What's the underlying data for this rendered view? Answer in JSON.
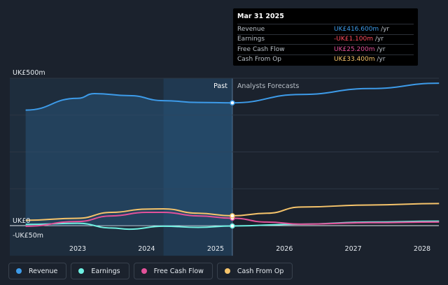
{
  "chart_data": {
    "type": "line",
    "currency_prefix": "UK£",
    "y_axis": {
      "top_label": "UK£500m",
      "zero_label": "UK£0",
      "bottom_label": "-UK£50m",
      "ylim": [
        -50,
        500
      ]
    },
    "x_axis": {
      "ticks": [
        "2023",
        "2024",
        "2025",
        "2026",
        "2027",
        "2028"
      ]
    },
    "regions": {
      "past_label": "Past",
      "forecast_label": "Analysts Forecasts",
      "divider_date": "2025-03-31"
    },
    "series": [
      {
        "name": "Revenue",
        "color": "#3d9be9",
        "points": [
          [
            "2022-03-31",
            392
          ],
          [
            "2022-12-31",
            432
          ],
          [
            "2023-03-31",
            448
          ],
          [
            "2023-09-30",
            441
          ],
          [
            "2024-03-31",
            424
          ],
          [
            "2024-09-30",
            418
          ],
          [
            "2025-03-31",
            416.6
          ],
          [
            "2026-03-31",
            445
          ],
          [
            "2027-03-31",
            465
          ],
          [
            "2028-03-31",
            483
          ],
          [
            "2028-03-31",
            487
          ]
        ]
      },
      {
        "name": "Earnings",
        "color": "#6ff0e2",
        "points": [
          [
            "2022-03-31",
            4
          ],
          [
            "2022-12-31",
            8
          ],
          [
            "2023-06-30",
            -8
          ],
          [
            "2023-09-30",
            -12
          ],
          [
            "2024-03-31",
            -2
          ],
          [
            "2024-09-30",
            -6
          ],
          [
            "2025-03-31",
            -1.1
          ],
          [
            "2026-03-31",
            5
          ],
          [
            "2027-03-31",
            12
          ],
          [
            "2028-03-31",
            15
          ]
        ]
      },
      {
        "name": "Free Cash Flow",
        "color": "#e2529a",
        "points": [
          [
            "2022-03-31",
            -2
          ],
          [
            "2022-12-31",
            14
          ],
          [
            "2023-06-30",
            33
          ],
          [
            "2023-12-31",
            45
          ],
          [
            "2024-03-31",
            45
          ],
          [
            "2024-09-30",
            33
          ],
          [
            "2025-03-31",
            25.2
          ],
          [
            "2025-09-30",
            12
          ],
          [
            "2026-03-31",
            5
          ],
          [
            "2027-03-31",
            10
          ],
          [
            "2028-03-31",
            12
          ]
        ]
      },
      {
        "name": "Cash From Op",
        "color": "#f6c46b",
        "points": [
          [
            "2022-03-31",
            18
          ],
          [
            "2022-12-31",
            25
          ],
          [
            "2023-06-30",
            45
          ],
          [
            "2023-12-31",
            56
          ],
          [
            "2024-03-31",
            57
          ],
          [
            "2024-09-30",
            42
          ],
          [
            "2025-03-31",
            33.4
          ],
          [
            "2025-09-30",
            42
          ],
          [
            "2026-03-31",
            63
          ],
          [
            "2027-03-31",
            70
          ],
          [
            "2028-03-31",
            75
          ]
        ]
      }
    ]
  },
  "tooltip": {
    "date": "Mar 31 2025",
    "rows": [
      {
        "label": "Revenue",
        "value": "UK£416.600m",
        "unit": " /yr",
        "color": "#3d9be9"
      },
      {
        "label": "Earnings",
        "value": "-UK£1.100m",
        "unit": " /yr",
        "color": "#ff4d5e"
      },
      {
        "label": "Free Cash Flow",
        "value": "UK£25.200m",
        "unit": " /yr",
        "color": "#e2529a"
      },
      {
        "label": "Cash From Op",
        "value": "UK£33.400m",
        "unit": " /yr",
        "color": "#f6c46b"
      }
    ]
  },
  "legend": [
    {
      "label": "Revenue",
      "color": "#3d9be9"
    },
    {
      "label": "Earnings",
      "color": "#6ff0e2"
    },
    {
      "label": "Free Cash Flow",
      "color": "#e2529a"
    },
    {
      "label": "Cash From Op",
      "color": "#f6c46b"
    }
  ]
}
